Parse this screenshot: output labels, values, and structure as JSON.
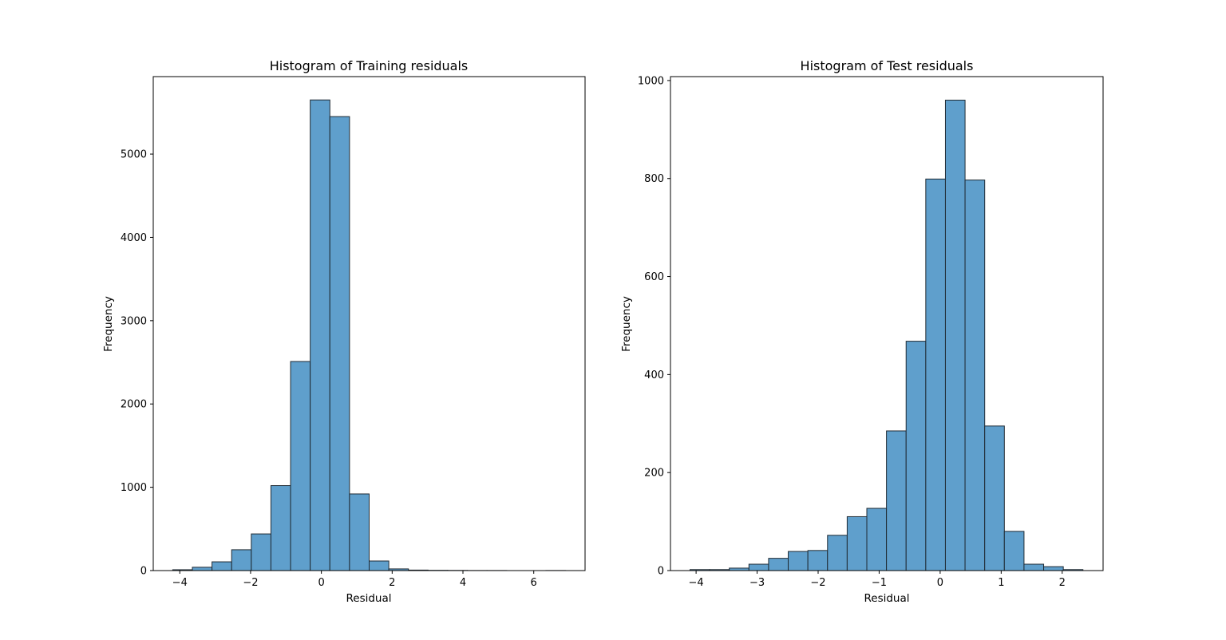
{
  "colors": {
    "bar_fill": "#5f9fcc",
    "bar_edge": "#1f2a33",
    "axes": "#000000"
  },
  "chart_data": [
    {
      "type": "bar",
      "title": "Histogram of Training residuals",
      "xlabel": "Residual",
      "ylabel": "Frequency",
      "xlim": [
        -4.75,
        7.45
      ],
      "ylim": [
        0,
        5930
      ],
      "xticks": [
        -4,
        -2,
        0,
        2,
        4,
        6
      ],
      "xtick_labels": [
        "−4",
        "−2",
        "0",
        "2",
        "4",
        "6"
      ],
      "yticks": [
        0,
        1000,
        2000,
        3000,
        4000,
        5000
      ],
      "ytick_labels": [
        "0",
        "1000",
        "2000",
        "3000",
        "4000",
        "5000"
      ],
      "bin_edges": [
        -4.2,
        -3.645,
        -3.09,
        -2.535,
        -1.98,
        -1.425,
        -0.87,
        -0.315,
        0.24,
        0.795,
        1.35,
        1.905,
        2.46,
        3.015,
        3.57,
        4.125,
        4.68,
        5.235,
        5.79,
        6.345,
        6.9
      ],
      "values": [
        10,
        40,
        105,
        250,
        440,
        1020,
        2510,
        5650,
        5450,
        920,
        115,
        20,
        6,
        3,
        2,
        1,
        1,
        0,
        0,
        1
      ],
      "grid": false
    },
    {
      "type": "bar",
      "title": "Histogram of Test residuals",
      "xlabel": "Residual",
      "ylabel": "Frequency",
      "xlim": [
        -4.42,
        2.67
      ],
      "ylim": [
        0,
        1008
      ],
      "xticks": [
        -4,
        -3,
        -2,
        -1,
        0,
        1,
        2
      ],
      "xtick_labels": [
        "−4",
        "−3",
        "−2",
        "−1",
        "0",
        "1",
        "2"
      ],
      "yticks": [
        0,
        200,
        400,
        600,
        800,
        1000
      ],
      "ytick_labels": [
        "0",
        "200",
        "400",
        "600",
        "800",
        "1000"
      ],
      "bin_edges": [
        -4.1,
        -3.778,
        -3.456,
        -3.134,
        -2.812,
        -2.49,
        -2.168,
        -1.846,
        -1.524,
        -1.202,
        -0.88,
        -0.558,
        -0.236,
        0.086,
        0.408,
        0.73,
        1.052,
        1.374,
        1.696,
        2.018,
        2.34
      ],
      "values": [
        2,
        2,
        5,
        13,
        25,
        39,
        41,
        72,
        110,
        127,
        285,
        468,
        799,
        960,
        797,
        295,
        80,
        13,
        8,
        2
      ],
      "grid": false
    }
  ]
}
